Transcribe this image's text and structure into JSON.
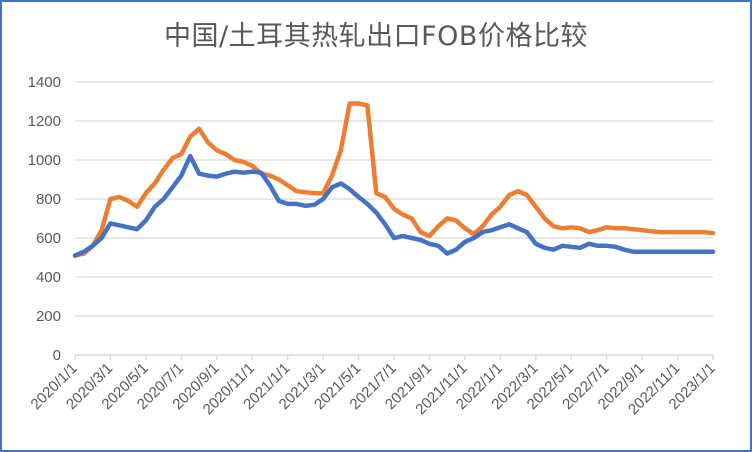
{
  "chart_data": {
    "type": "line",
    "title": "中国/土耳其热轧出口FOB价格比较",
    "xlabel": "",
    "ylabel": "",
    "ylim": [
      0,
      1400
    ],
    "yticks": [
      0,
      200,
      400,
      600,
      800,
      1000,
      1200,
      1400
    ],
    "xtick_labels": [
      "2020/1/1",
      "2020/3/1",
      "2020/5/1",
      "2020/7/1",
      "2020/9/1",
      "2020/11/1",
      "2021/1/1",
      "2021/3/1",
      "2021/5/1",
      "2021/7/1",
      "2021/9/1",
      "2021/11/1",
      "2022/1/1",
      "2022/3/1",
      "2022/5/1",
      "2022/7/1",
      "2022/9/1",
      "2022/11/1",
      "2023/1/1"
    ],
    "grid": true,
    "legend": "none",
    "x_months_from_2020_01": [
      0,
      0.5,
      1,
      1.5,
      2,
      2.5,
      3,
      3.5,
      4,
      4.5,
      5,
      5.5,
      6,
      6.5,
      7,
      7.5,
      8,
      8.5,
      9,
      9.5,
      10,
      10.5,
      11,
      11.5,
      12,
      12.5,
      13,
      13.5,
      14,
      14.5,
      15,
      15.5,
      16,
      16.5,
      17,
      17.5,
      18,
      18.5,
      19,
      19.5,
      20,
      20.5,
      21,
      21.5,
      22,
      22.5,
      23,
      23.5,
      24,
      24.5,
      25,
      25.5,
      26,
      26.5,
      27,
      27.5,
      28,
      28.5,
      29,
      29.5,
      30,
      30.5,
      31,
      31.5,
      32,
      32.5,
      33,
      33.5,
      34,
      34.5,
      35,
      35.5,
      36
    ],
    "series": [
      {
        "name": "China",
        "color": "#4472c4",
        "values": [
          510,
          530,
          560,
          600,
          675,
          665,
          655,
          645,
          690,
          760,
          800,
          860,
          920,
          1020,
          930,
          920,
          915,
          930,
          940,
          935,
          940,
          935,
          870,
          790,
          775,
          775,
          765,
          770,
          800,
          860,
          880,
          850,
          810,
          775,
          730,
          670,
          600,
          610,
          600,
          590,
          570,
          560,
          520,
          540,
          580,
          600,
          630,
          640,
          655,
          670,
          650,
          630,
          570,
          550,
          540,
          560,
          555,
          550,
          570,
          560,
          560,
          555,
          540,
          530,
          530,
          530,
          530,
          530,
          530,
          530,
          530,
          530,
          530
        ]
      },
      {
        "name": "Turkey",
        "color": "#ed7d31",
        "values": [
          510,
          520,
          560,
          640,
          800,
          810,
          790,
          760,
          830,
          880,
          950,
          1010,
          1030,
          1120,
          1160,
          1090,
          1050,
          1030,
          1000,
          990,
          970,
          930,
          920,
          900,
          870,
          840,
          835,
          830,
          830,
          920,
          1050,
          1290,
          1290,
          1280,
          830,
          810,
          750,
          720,
          700,
          630,
          610,
          660,
          700,
          690,
          650,
          620,
          660,
          720,
          760,
          820,
          840,
          820,
          760,
          700,
          660,
          650,
          655,
          650,
          630,
          640,
          655,
          650,
          650,
          645,
          640,
          635,
          630,
          630,
          630,
          630,
          630,
          630,
          625
        ]
      }
    ]
  }
}
